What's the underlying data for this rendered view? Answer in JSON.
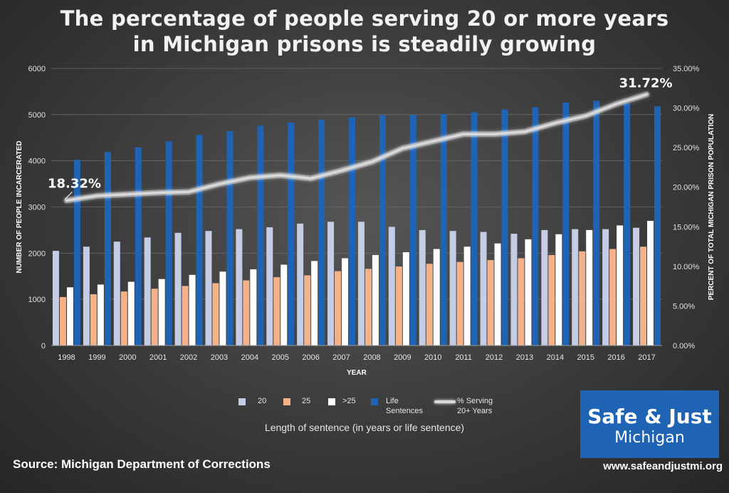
{
  "title_line1": "The percentage of people serving 20 or more years",
  "title_line2": "in Michigan prisons is steadily growing",
  "legend_subtitle": "Length of sentence (in years or life sentence)",
  "source": "Source: Michigan Department of Corrections",
  "logo": {
    "line1": "Safe & Just",
    "line2": "Michigan"
  },
  "website": "www.safeandjustmi.org",
  "legend": [
    {
      "label": "20",
      "color": "#c5cde6"
    },
    {
      "label": "25",
      "color": "#f4b28a"
    },
    {
      "label": ">25",
      "color": "#ffffff"
    },
    {
      "label_line1": "Life",
      "label_line2": "Sentences",
      "color": "#1f63b4"
    },
    {
      "label_line1": "% Serving",
      "label_line2": "20+ Years",
      "color": "#d9d9d9"
    }
  ],
  "chart_data": {
    "type": "bar",
    "xlabel": "YEAR",
    "ylabel": "NUMBER OF PEOPLE INCARCERATED",
    "y2label": "PERCENT OF TOTAL MICHIGAN PRISON POPULATION",
    "ylim": [
      0,
      6000
    ],
    "yticks": [
      "0",
      "1000",
      "2000",
      "3000",
      "4000",
      "5000",
      "6000"
    ],
    "y2lim": [
      0,
      35
    ],
    "y2ticks": [
      "0.00%",
      "5.00%",
      "10.00%",
      "15.00%",
      "20.00%",
      "25.00%",
      "30.00%",
      "35.00%"
    ],
    "gridlines": true,
    "categories": [
      "1998",
      "1999",
      "2000",
      "2001",
      "2002",
      "2003",
      "2004",
      "2005",
      "2006",
      "2007",
      "2008",
      "2009",
      "2010",
      "2011",
      "2012",
      "2013",
      "2014",
      "2015",
      "2016",
      "2017"
    ],
    "series": [
      {
        "name": "20",
        "axis": "left",
        "color": "#c5cde6",
        "values": [
          2050,
          2140,
          2250,
          2340,
          2440,
          2480,
          2520,
          2560,
          2640,
          2680,
          2680,
          2570,
          2500,
          2480,
          2460,
          2420,
          2500,
          2520,
          2520,
          2550
        ]
      },
      {
        "name": "25",
        "axis": "left",
        "color": "#f4b28a",
        "values": [
          1050,
          1110,
          1170,
          1230,
          1290,
          1350,
          1410,
          1480,
          1520,
          1610,
          1660,
          1710,
          1770,
          1810,
          1850,
          1890,
          1960,
          2040,
          2090,
          2140
        ]
      },
      {
        "name": ">25",
        "axis": "left",
        "color": "#ffffff",
        "values": [
          1260,
          1320,
          1380,
          1440,
          1530,
          1600,
          1650,
          1750,
          1830,
          1890,
          1960,
          2020,
          2090,
          2140,
          2210,
          2300,
          2410,
          2500,
          2600,
          2700
        ]
      },
      {
        "name": "Life Sentences",
        "axis": "left",
        "color": "#1f63b4",
        "values": [
          4020,
          4190,
          4290,
          4420,
          4560,
          4640,
          4760,
          4830,
          4890,
          4940,
          4990,
          4990,
          5010,
          5050,
          5110,
          5160,
          5260,
          5300,
          5240,
          5180
        ]
      },
      {
        "name": "% Serving 20+ Years",
        "type": "line",
        "axis": "right",
        "color": "#d9d9d9",
        "values": [
          18.32,
          18.9,
          19.1,
          19.3,
          19.4,
          20.4,
          21.2,
          21.5,
          21.1,
          22.1,
          23.2,
          24.9,
          25.8,
          26.7,
          26.7,
          27.0,
          28.1,
          29.0,
          30.5,
          31.72
        ]
      }
    ],
    "annotations": [
      {
        "text": "18.32%",
        "x": "1998",
        "series": "% Serving 20+ Years"
      },
      {
        "text": "31.72%",
        "x": "2017",
        "series": "% Serving 20+ Years"
      }
    ]
  }
}
